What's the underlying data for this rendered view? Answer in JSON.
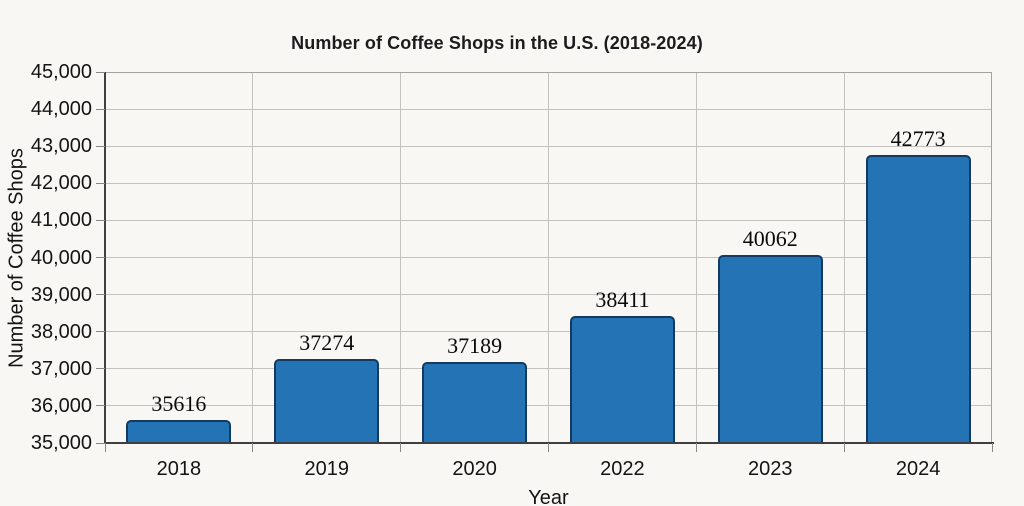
{
  "chart_data": {
    "type": "bar",
    "title": "Number of Coffee Shops in the U.S. (2018-2024)",
    "xlabel": "Year",
    "ylabel": "Number of Coffee Shops",
    "categories": [
      "2018",
      "2019",
      "2020",
      "2022",
      "2023",
      "2024"
    ],
    "values": [
      35616,
      37274,
      37189,
      38411,
      40062,
      42773
    ],
    "bar_labels": [
      "35616",
      "37274",
      "37189",
      "38411",
      "40062",
      "42773"
    ],
    "ylim": [
      35000,
      45000
    ],
    "ytick_step": 1000,
    "ytick_labels": [
      "35,000",
      "36,000",
      "37,000",
      "38,000",
      "39,000",
      "40,000",
      "41,000",
      "42,000",
      "43,000",
      "44,000",
      "45,000"
    ],
    "grid": true,
    "legend": "none",
    "colors": {
      "background": "#f8f7f4",
      "bar_fill": "#2373b5",
      "bar_border": "#133a61",
      "gridline": "#c4c2bf",
      "plot_border": "#a4a2a0",
      "axis": "#3f3f3f",
      "tick": "#8a8886",
      "text": "#141414",
      "title_text": "#1c1c1e",
      "value_text": "#0a0a0a"
    }
  }
}
